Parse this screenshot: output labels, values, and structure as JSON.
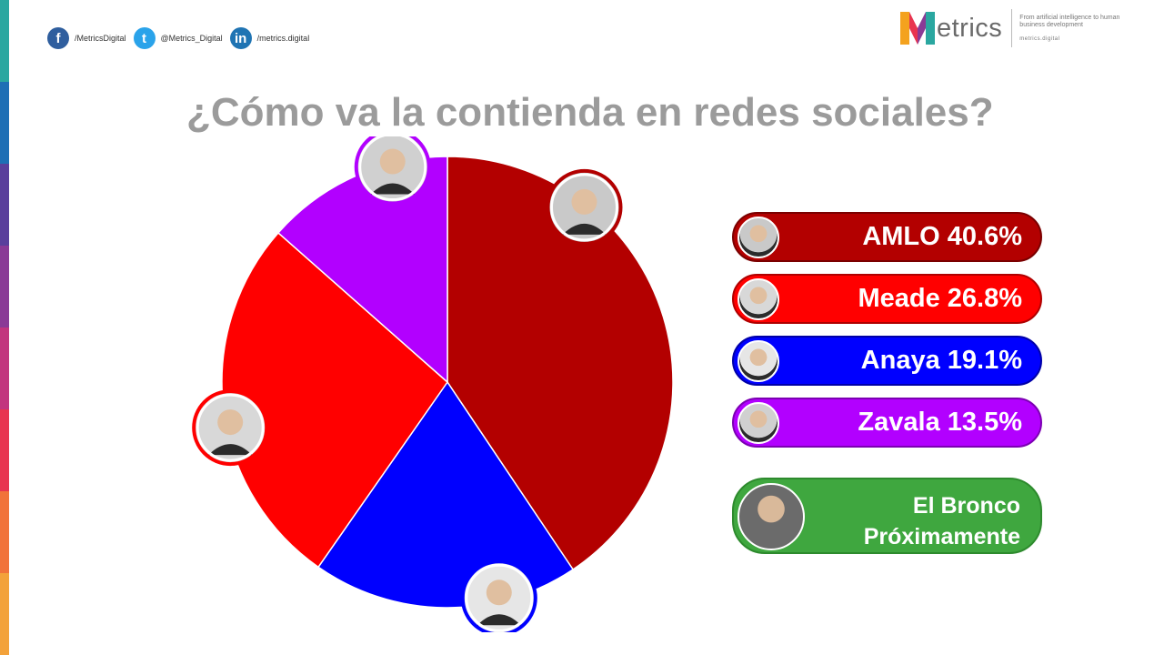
{
  "edge_colors": [
    "#2aa7a0",
    "#1e6fb5",
    "#5a3f9c",
    "#8a3a96",
    "#c2357e",
    "#e8344f",
    "#f1733a",
    "#f3a23a"
  ],
  "social": [
    {
      "icon": "facebook-icon",
      "glyph": "f",
      "color": "#2f5e9e",
      "text": "/MetricsDigital"
    },
    {
      "icon": "twitter-icon",
      "glyph": "t",
      "color": "#2aa3ea",
      "text": "@Metrics_Digital"
    },
    {
      "icon": "linkedin-icon",
      "glyph": "in",
      "color": "#1f74b3",
      "text": "/metrics.digital"
    }
  ],
  "logo": {
    "word": "etrics",
    "tagline": "From artificial intelligence to human business development",
    "url": "metrics.digital"
  },
  "title": "¿Cómo va la contienda en redes sociales?",
  "chart_data": {
    "type": "pie",
    "title": "¿Cómo va la contienda en redes sociales?",
    "start_angle_deg": 0,
    "direction": "clockwise",
    "slices": [
      {
        "label": "AMLO",
        "value": 40.6,
        "color": "#b30000",
        "avatar_tint": "#c9c9c9"
      },
      {
        "label": "Anaya",
        "value": 19.1,
        "color": "#0000ff",
        "avatar_tint": "#e6e6e6"
      },
      {
        "label": "Meade",
        "value": 26.8,
        "color": "#ff0000",
        "avatar_tint": "#d8d8d8"
      },
      {
        "label": "Zavala",
        "value": 13.5,
        "color": "#b200ff",
        "avatar_tint": "#d0d0d0"
      }
    ]
  },
  "legend": [
    {
      "label": "AMLO 40.6%",
      "color": "#b30000",
      "border": "#7a0000",
      "avatar_color": "#c9c9c9"
    },
    {
      "label": "Meade 26.8%",
      "color": "#ff0000",
      "border": "#b00000",
      "avatar_color": "#d8d8d8"
    },
    {
      "label": "Anaya 19.1%",
      "color": "#0000ff",
      "border": "#0000a8",
      "avatar_color": "#e6e6e6"
    },
    {
      "label": "Zavala 13.5%",
      "color": "#b200ff",
      "border": "#7c00b3",
      "avatar_color": "#d0d0d0"
    }
  ],
  "bronco": {
    "line1": "El Bronco",
    "line2": "Próximamente",
    "color": "#3fa73f"
  }
}
